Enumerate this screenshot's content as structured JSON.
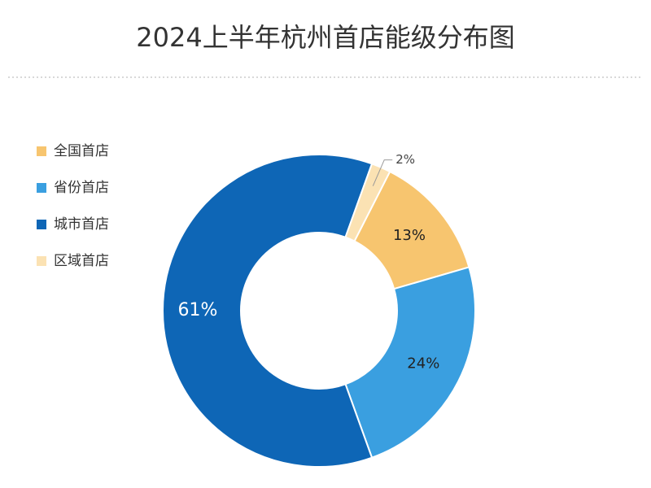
{
  "chart_data": {
    "type": "donut",
    "title": "2024上半年杭州首店能级分布图",
    "categories": [
      "全国首店",
      "省份首店",
      "城市首店",
      "区域首店"
    ],
    "values": [
      13,
      24,
      61,
      2
    ],
    "value_labels": [
      "13%",
      "24%",
      "61%",
      "2%"
    ],
    "colors": [
      "#f7c56f",
      "#3a9fe0",
      "#0e66b6",
      "#fbe2b3"
    ],
    "legend": "left"
  }
}
